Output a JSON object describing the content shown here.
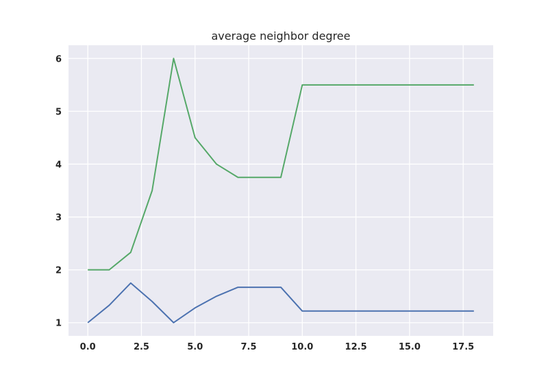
{
  "chart_data": {
    "type": "line",
    "title": "average neighbor degree",
    "xlabel": "",
    "ylabel": "",
    "xlim": [
      -0.9,
      18.9
    ],
    "ylim": [
      0.75,
      6.25
    ],
    "x_ticks": [
      0.0,
      2.5,
      5.0,
      7.5,
      10.0,
      12.5,
      15.0,
      17.5
    ],
    "x_tick_labels": [
      "0.0",
      "2.5",
      "5.0",
      "7.5",
      "10.0",
      "12.5",
      "15.0",
      "17.5"
    ],
    "y_ticks": [
      1,
      2,
      3,
      4,
      5,
      6
    ],
    "y_tick_labels": [
      "1",
      "2",
      "3",
      "4",
      "5",
      "6"
    ],
    "grid": true,
    "background": "#eaeaf2",
    "x": [
      0,
      1,
      2,
      3,
      4,
      5,
      6,
      7,
      8,
      9,
      10,
      11,
      12,
      13,
      14,
      15,
      16,
      17,
      18
    ],
    "series": [
      {
        "color": "#4c72b0",
        "values": [
          1.0,
          1.33,
          1.75,
          1.4,
          1.0,
          1.28,
          1.5,
          1.67,
          1.67,
          1.67,
          1.22,
          1.22,
          1.22,
          1.22,
          1.22,
          1.22,
          1.22,
          1.22,
          1.22
        ]
      },
      {
        "color": "#55a868",
        "values": [
          2.0,
          2.0,
          2.33,
          3.5,
          6.0,
          4.5,
          4.0,
          3.75,
          3.75,
          3.75,
          5.5,
          5.5,
          5.5,
          5.5,
          5.5,
          5.5,
          5.5,
          5.5,
          5.5
        ]
      }
    ]
  }
}
